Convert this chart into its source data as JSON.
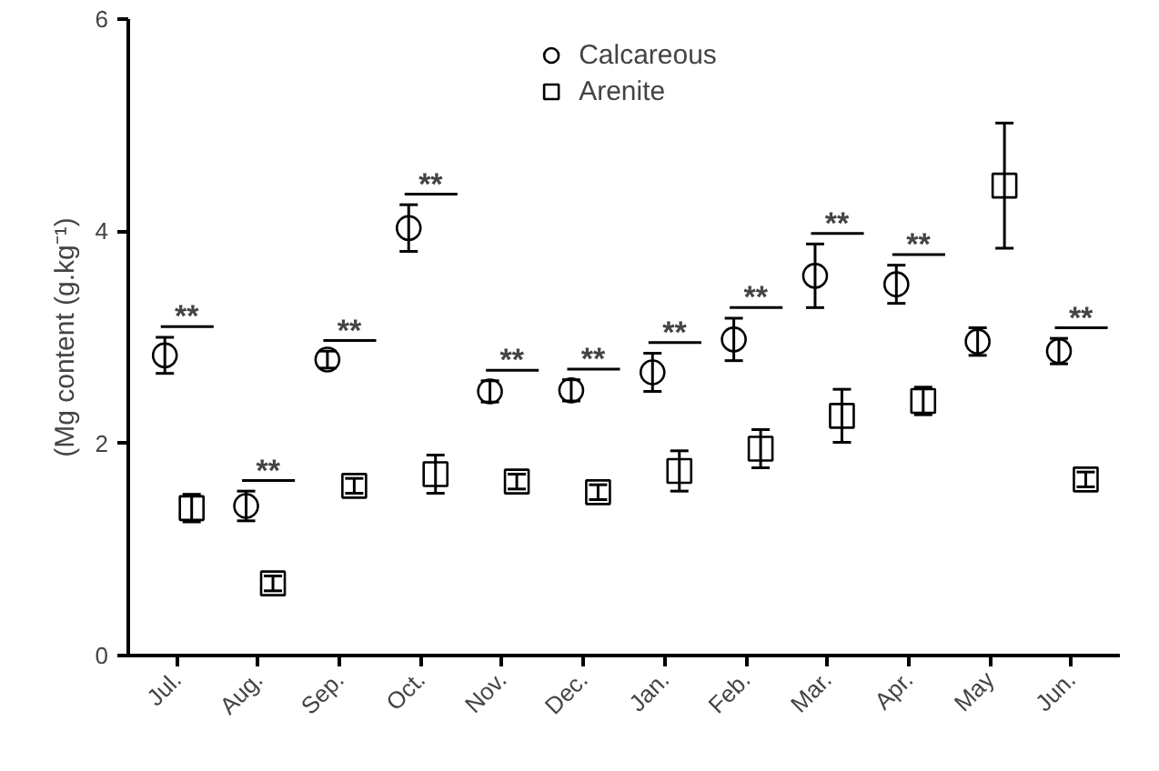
{
  "chart_data": {
    "type": "scatter",
    "ylabel": "(Mg content (g.kg⁻¹)",
    "categories": [
      "Jul.",
      "Aug.",
      "Sep.",
      "Oct.",
      "Nov.",
      "Dec.",
      "Jan.",
      "Feb.",
      "Mar.",
      "Apr.",
      "May",
      "Jun."
    ],
    "series": [
      {
        "name": "Calcareous",
        "color": "#000000",
        "marker": "circle",
        "values": [
          2.83,
          1.41,
          2.79,
          4.03,
          2.49,
          2.5,
          2.67,
          2.98,
          3.58,
          3.5,
          2.96,
          2.87
        ],
        "errors": [
          0.17,
          0.14,
          0.08,
          0.22,
          0.1,
          0.1,
          0.18,
          0.2,
          0.3,
          0.18,
          0.13,
          0.12
        ]
      },
      {
        "name": "Arenite",
        "color": "#000000",
        "marker": "square",
        "values": [
          1.39,
          0.68,
          1.6,
          1.71,
          1.64,
          1.54,
          1.74,
          1.95,
          2.26,
          2.4,
          4.43,
          1.66
        ],
        "errors": [
          0.13,
          0.07,
          0.07,
          0.18,
          0.07,
          0.07,
          0.19,
          0.18,
          0.25,
          0.13,
          0.59,
          0.07
        ]
      }
    ],
    "ylim": [
      0,
      6
    ],
    "yticks": [
      0,
      2,
      4,
      6
    ],
    "grid": false,
    "legend": "top",
    "annotations": [
      "**",
      "**",
      "**",
      "**",
      "**",
      "**",
      "**",
      "**",
      "**",
      "**",
      "**"
    ]
  }
}
